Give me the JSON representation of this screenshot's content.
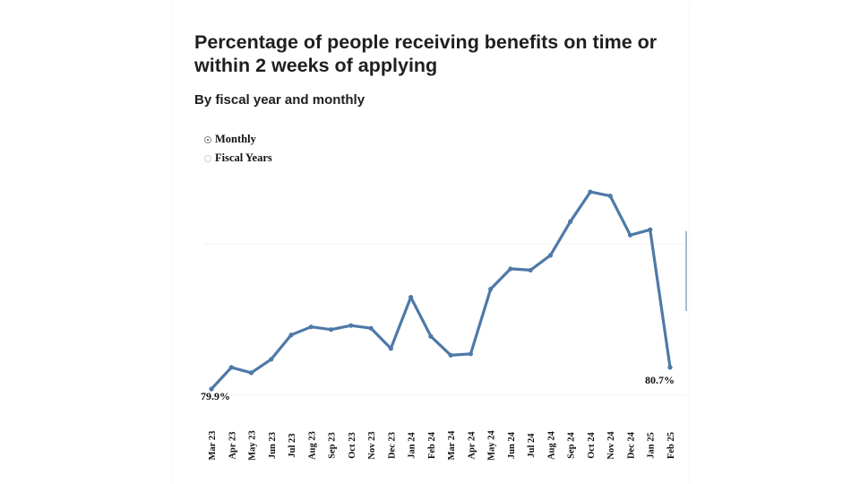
{
  "title": "Percentage of people receiving benefits on time or within 2 weeks of applying",
  "subtitle": "By fiscal year and monthly",
  "toggle": {
    "options": [
      {
        "label": "Monthly",
        "selected": true
      },
      {
        "label": "Fiscal Years",
        "selected": false
      }
    ]
  },
  "colors": {
    "line": "#4e79a7",
    "gridline": "#f0f0f0",
    "right_edge_line": "#4e79a7"
  },
  "chart_data": {
    "type": "line",
    "title": "Percentage of people receiving benefits on time or within 2 weeks of applying",
    "subtitle": "By fiscal year and monthly",
    "xlabel": "",
    "ylabel": "",
    "grid": true,
    "categories": [
      "Mar 23",
      "Apr 23",
      "May 23",
      "Jun 23",
      "Jul 23",
      "Aug 23",
      "Sep 23",
      "Oct 23",
      "Nov 23",
      "Dec 23",
      "Jan 24",
      "Feb 24",
      "Mar 24",
      "Apr 24",
      "May 24",
      "Jun 24",
      "Jul 24",
      "Aug 24",
      "Sep 24",
      "Oct 24",
      "Nov 24",
      "Dec 24",
      "Jan 25",
      "Feb 25"
    ],
    "series": [
      {
        "values": [
          79.9,
          80.7,
          80.5,
          81.0,
          81.9,
          82.2,
          82.1,
          82.25,
          82.15,
          81.4,
          83.3,
          81.85,
          81.15,
          81.2,
          83.6,
          84.35,
          84.3,
          84.85,
          86.1,
          87.2,
          87.05,
          85.6,
          85.8,
          80.7
        ]
      }
    ],
    "data_labels": [
      {
        "category": "Mar 23",
        "text": "79.9%"
      },
      {
        "category": "Feb 25",
        "text": "80.7%"
      }
    ],
    "ylim": [
      79.7,
      88.0
    ]
  }
}
